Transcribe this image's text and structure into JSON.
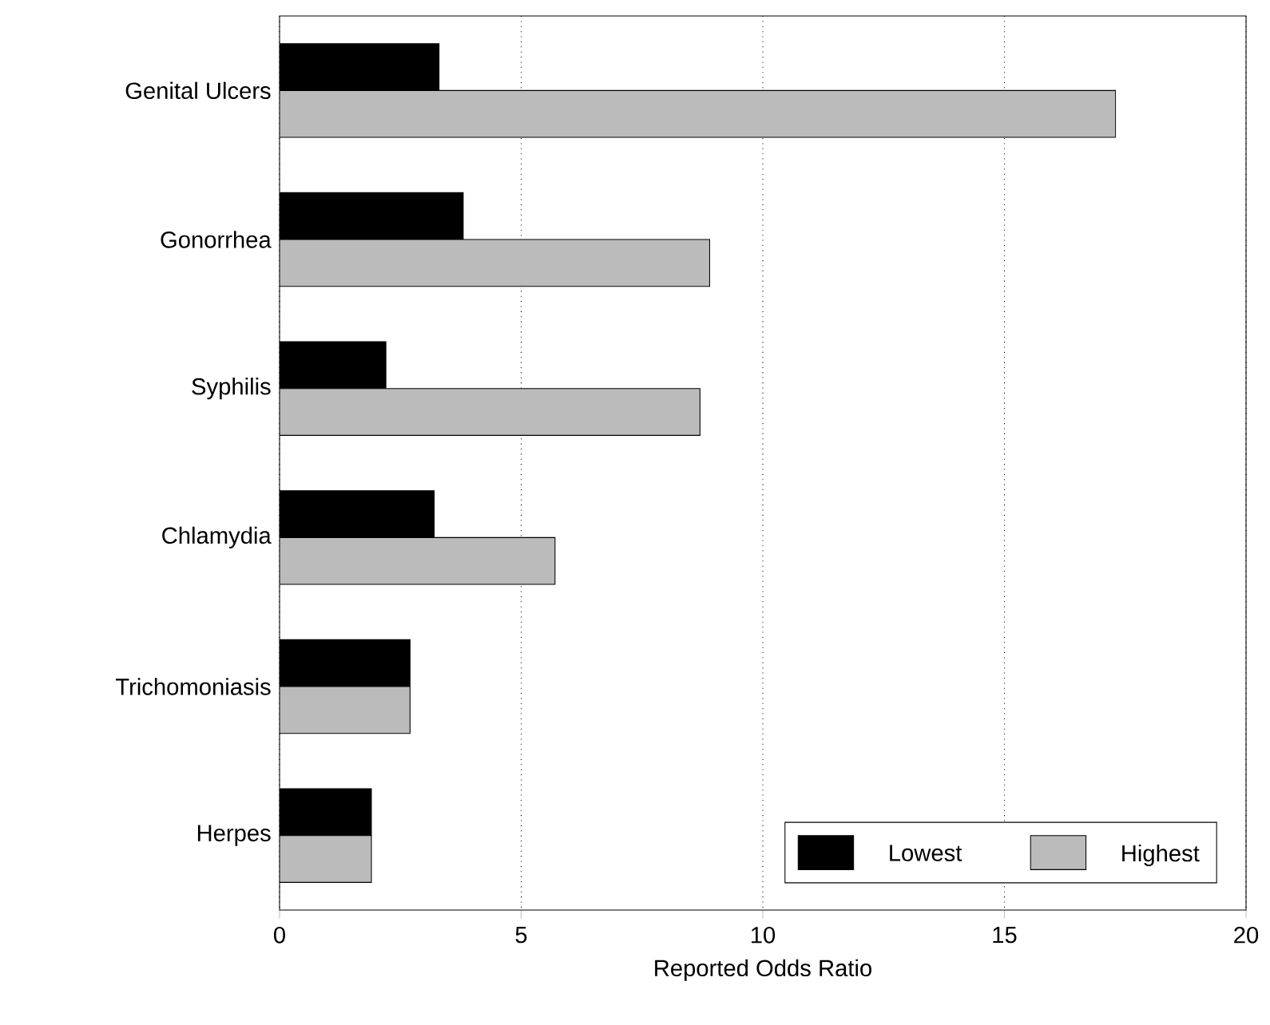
{
  "chart_data": {
    "type": "bar",
    "orientation": "horizontal",
    "xlabel": "Reported Odds Ratio",
    "categories": [
      "Genital Ulcers",
      "Gonorrhea",
      "Syphilis",
      "Chlamydia",
      "Trichomoniasis",
      "Herpes"
    ],
    "series": [
      {
        "name": "Lowest",
        "color": "#000000",
        "values": [
          3.3,
          3.8,
          2.2,
          3.2,
          2.7,
          1.9
        ]
      },
      {
        "name": "Highest",
        "color": "#bbbbbb",
        "values": [
          17.3,
          8.9,
          8.7,
          5.7,
          2.7,
          1.9
        ]
      }
    ],
    "xlim": [
      0,
      20
    ],
    "xticks": [
      0,
      5,
      10,
      15,
      20
    ],
    "grid": "x",
    "legend": "bottom right"
  }
}
